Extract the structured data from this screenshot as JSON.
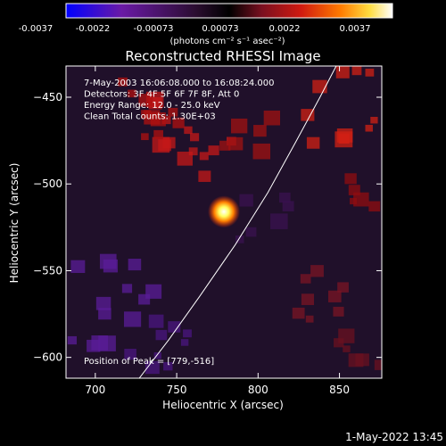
{
  "colorbar": {
    "tick_labels": [
      "-0.0037",
      "-0.0022",
      "-0.00073",
      "0.00073",
      "0.0022",
      "0.0037"
    ],
    "unit_label": "(photons cm⁻² s⁻¹ asec⁻²)",
    "range": [
      -0.0037,
      0.0037
    ],
    "colormap": [
      "#0000ff",
      "#6a1aa6",
      "#2a0d2f",
      "#000000",
      "#7a1020",
      "#d01a10",
      "#ff7a00",
      "#ffdd40",
      "#ffffff"
    ]
  },
  "chart_data": {
    "type": "heatmap",
    "title": "Reconstructed RHESSI Image",
    "xlabel": "Heliocentric X (arcsec)",
    "ylabel": "Heliocentric Y (arcsec)",
    "xlim": [
      682,
      876
    ],
    "ylim": [
      -612,
      -432
    ],
    "x_ticks": [
      700,
      750,
      800,
      850
    ],
    "x_tick_labels": [
      "700",
      "750",
      "800",
      "850"
    ],
    "y_ticks": [
      -600,
      -550,
      -500,
      -450
    ],
    "y_tick_labels": [
      "−600",
      "−550",
      "−500",
      "−450"
    ],
    "annotations": [
      "7-May-2003 16:06:08.000 to 16:08:24.000",
      "Detectors: 3F 4F 5F 6F 7F 8F, Att 0",
      "Energy Range: 12.0 - 25.0 keV",
      "Clean     Total counts: 1.30E+03"
    ],
    "peak_label": "Position of Peak = [779,-516]",
    "peak_position": [
      779,
      -516
    ],
    "limb_curve": [
      [
        727,
        -612
      ],
      [
        745,
        -590
      ],
      [
        764,
        -565
      ],
      [
        786,
        -535
      ],
      [
        806,
        -505
      ],
      [
        823,
        -476
      ],
      [
        838,
        -450
      ],
      [
        848,
        -432
      ]
    ]
  },
  "footer": {
    "timestamp": "1-May-2022 13:45"
  }
}
